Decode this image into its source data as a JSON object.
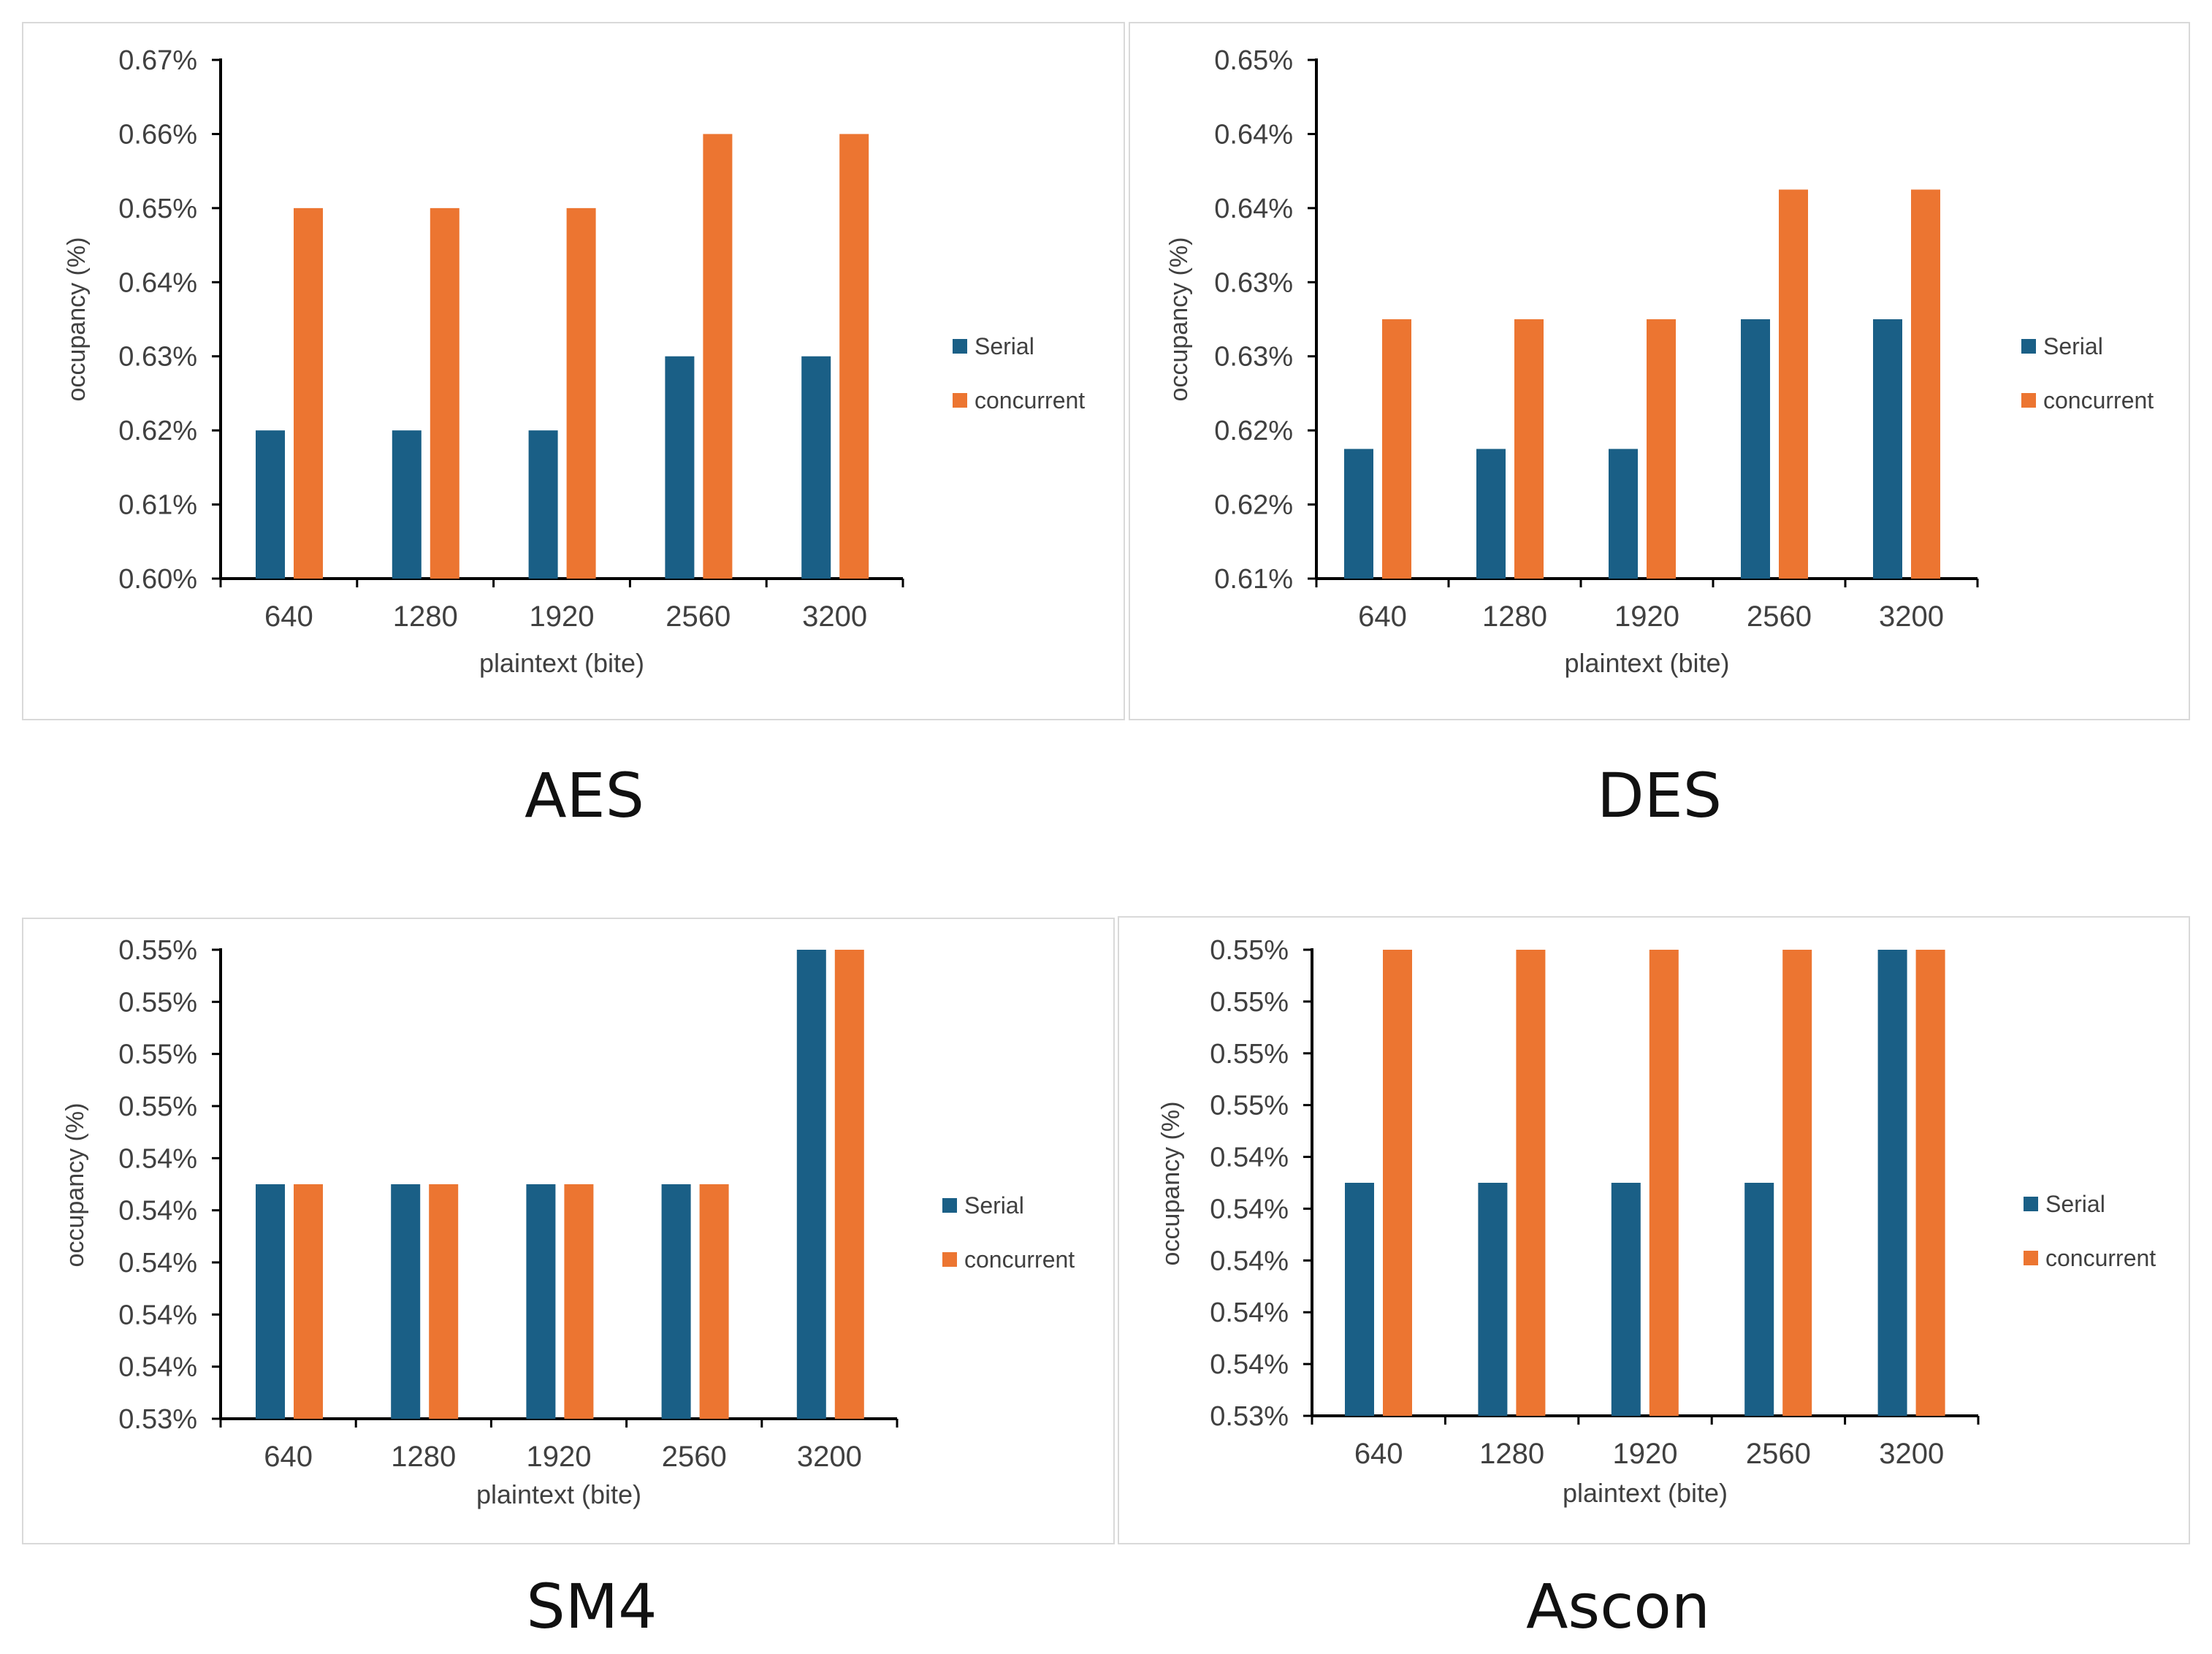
{
  "colors": {
    "serial": "#1a5f86",
    "concurrent": "#ec7531",
    "axis": "#000000",
    "text": "#404040"
  },
  "charts": [
    {
      "caption": "AES",
      "chart_data": {
        "type": "bar",
        "xlabel": "plaintext (bite)",
        "ylabel": "occupancy (%)",
        "categories": [
          "640",
          "1280",
          "1920",
          "2560",
          "3200"
        ],
        "ylim": [
          0.6,
          0.67
        ],
        "yticks": [
          "0.60%",
          "0.61%",
          "0.62%",
          "0.63%",
          "0.64%",
          "0.65%",
          "0.66%",
          "0.67%"
        ],
        "series": [
          {
            "name": "Serial",
            "values": [
              0.62,
              0.62,
              0.62,
              0.63,
              0.63
            ]
          },
          {
            "name": "concurrent",
            "values": [
              0.65,
              0.65,
              0.65,
              0.66,
              0.66
            ]
          }
        ],
        "legend": "right"
      }
    },
    {
      "caption": "DES",
      "chart_data": {
        "type": "bar",
        "xlabel": "plaintext (bite)",
        "ylabel": "occupancy (%)",
        "categories": [
          "640",
          "1280",
          "1920",
          "2560",
          "3200"
        ],
        "ylim": [
          0.61,
          0.65
        ],
        "yticks": [
          "0.61%",
          "0.62%",
          "0.62%",
          "0.63%",
          "0.63%",
          "0.64%",
          "0.64%",
          "0.65%"
        ],
        "series": [
          {
            "name": "Serial",
            "values": [
              0.62,
              0.62,
              0.62,
              0.63,
              0.63
            ]
          },
          {
            "name": "concurrent",
            "values": [
              0.63,
              0.63,
              0.63,
              0.64,
              0.64
            ]
          }
        ],
        "legend": "right"
      }
    },
    {
      "caption": "SM4",
      "chart_data": {
        "type": "bar",
        "xlabel": "plaintext (bite)",
        "ylabel": "occupancy (%)",
        "categories": [
          "640",
          "1280",
          "1920",
          "2560",
          "3200"
        ],
        "ylim": [
          0.53,
          0.55
        ],
        "yticks": [
          "0.53%",
          "0.54%",
          "0.54%",
          "0.54%",
          "0.54%",
          "0.54%",
          "0.55%",
          "0.55%",
          "0.55%",
          "0.55%"
        ],
        "series": [
          {
            "name": "Serial",
            "values": [
              0.54,
              0.54,
              0.54,
              0.54,
              0.55
            ]
          },
          {
            "name": "concurrent",
            "values": [
              0.54,
              0.54,
              0.54,
              0.54,
              0.55
            ]
          }
        ],
        "legend": "right"
      }
    },
    {
      "caption": "Ascon",
      "chart_data": {
        "type": "bar",
        "xlabel": "plaintext (bite)",
        "ylabel": "occupancy (%)",
        "categories": [
          "640",
          "1280",
          "1920",
          "2560",
          "3200"
        ],
        "ylim": [
          0.53,
          0.55
        ],
        "yticks": [
          "0.53%",
          "0.54%",
          "0.54%",
          "0.54%",
          "0.54%",
          "0.54%",
          "0.55%",
          "0.55%",
          "0.55%",
          "0.55%"
        ],
        "series": [
          {
            "name": "Serial",
            "values": [
              0.54,
              0.54,
              0.54,
              0.54,
              0.55
            ]
          },
          {
            "name": "concurrent",
            "values": [
              0.55,
              0.55,
              0.55,
              0.55,
              0.55
            ]
          }
        ],
        "legend": "right"
      }
    }
  ]
}
